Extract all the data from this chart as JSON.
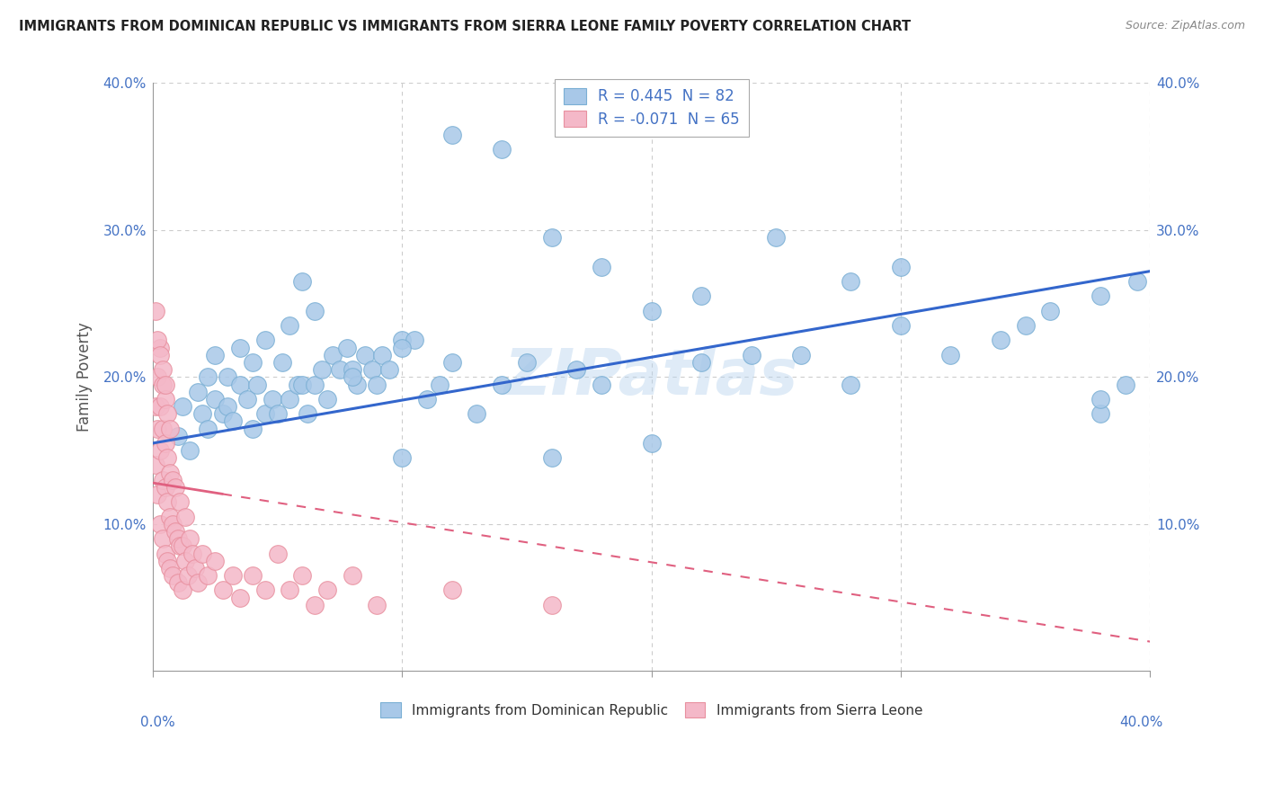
{
  "title": "IMMIGRANTS FROM DOMINICAN REPUBLIC VS IMMIGRANTS FROM SIERRA LEONE FAMILY POVERTY CORRELATION CHART",
  "source_text": "Source: ZipAtlas.com",
  "ylabel": "Family Poverty",
  "legend_entry1": "R = 0.445  N = 82",
  "legend_entry2": "R = -0.071  N = 65",
  "legend_label1": "Immigrants from Dominican Republic",
  "legend_label2": "Immigrants from Sierra Leone",
  "watermark": "ZIPatlas",
  "xlim": [
    0,
    0.4
  ],
  "ylim": [
    0,
    0.4
  ],
  "blue_color": "#a8c8e8",
  "blue_edge_color": "#7aafd4",
  "pink_color": "#f4b8c8",
  "pink_edge_color": "#e8909f",
  "blue_line_color": "#3366cc",
  "pink_line_color": "#e06080",
  "background_color": "#ffffff",
  "grid_color": "#cccccc",
  "blue_scatter_x": [
    0.01,
    0.012,
    0.015,
    0.018,
    0.02,
    0.022,
    0.022,
    0.025,
    0.025,
    0.028,
    0.03,
    0.03,
    0.032,
    0.035,
    0.035,
    0.038,
    0.04,
    0.04,
    0.042,
    0.045,
    0.045,
    0.048,
    0.05,
    0.052,
    0.055,
    0.055,
    0.058,
    0.06,
    0.062,
    0.065,
    0.065,
    0.068,
    0.07,
    0.072,
    0.075,
    0.078,
    0.08,
    0.082,
    0.085,
    0.088,
    0.09,
    0.092,
    0.095,
    0.1,
    0.1,
    0.105,
    0.11,
    0.115,
    0.12,
    0.13,
    0.14,
    0.15,
    0.16,
    0.17,
    0.18,
    0.2,
    0.22,
    0.24,
    0.26,
    0.28,
    0.3,
    0.32,
    0.34,
    0.36,
    0.38,
    0.395,
    0.06,
    0.08,
    0.1,
    0.12,
    0.14,
    0.16,
    0.18,
    0.2,
    0.22,
    0.25,
    0.28,
    0.3,
    0.35,
    0.38,
    0.38,
    0.39
  ],
  "blue_scatter_y": [
    0.16,
    0.18,
    0.15,
    0.19,
    0.175,
    0.2,
    0.165,
    0.185,
    0.215,
    0.175,
    0.18,
    0.2,
    0.17,
    0.195,
    0.22,
    0.185,
    0.165,
    0.21,
    0.195,
    0.175,
    0.225,
    0.185,
    0.175,
    0.21,
    0.185,
    0.235,
    0.195,
    0.195,
    0.175,
    0.195,
    0.245,
    0.205,
    0.185,
    0.215,
    0.205,
    0.22,
    0.205,
    0.195,
    0.215,
    0.205,
    0.195,
    0.215,
    0.205,
    0.145,
    0.225,
    0.225,
    0.185,
    0.195,
    0.21,
    0.175,
    0.195,
    0.21,
    0.145,
    0.205,
    0.195,
    0.155,
    0.21,
    0.215,
    0.215,
    0.195,
    0.235,
    0.215,
    0.225,
    0.245,
    0.175,
    0.265,
    0.265,
    0.2,
    0.22,
    0.365,
    0.355,
    0.295,
    0.275,
    0.245,
    0.255,
    0.295,
    0.265,
    0.275,
    0.235,
    0.255,
    0.185,
    0.195
  ],
  "pink_scatter_x": [
    0.001,
    0.001,
    0.002,
    0.002,
    0.002,
    0.003,
    0.003,
    0.003,
    0.003,
    0.004,
    0.004,
    0.004,
    0.004,
    0.005,
    0.005,
    0.005,
    0.005,
    0.006,
    0.006,
    0.006,
    0.006,
    0.007,
    0.007,
    0.007,
    0.007,
    0.008,
    0.008,
    0.008,
    0.009,
    0.009,
    0.01,
    0.01,
    0.011,
    0.011,
    0.012,
    0.012,
    0.013,
    0.013,
    0.014,
    0.015,
    0.016,
    0.017,
    0.018,
    0.02,
    0.022,
    0.025,
    0.028,
    0.032,
    0.035,
    0.04,
    0.045,
    0.05,
    0.055,
    0.06,
    0.065,
    0.07,
    0.08,
    0.09,
    0.12,
    0.16,
    0.001,
    0.002,
    0.003,
    0.004,
    0.005
  ],
  "pink_scatter_y": [
    0.14,
    0.18,
    0.12,
    0.165,
    0.2,
    0.1,
    0.15,
    0.18,
    0.22,
    0.09,
    0.13,
    0.165,
    0.195,
    0.08,
    0.125,
    0.155,
    0.185,
    0.075,
    0.115,
    0.145,
    0.175,
    0.07,
    0.105,
    0.135,
    0.165,
    0.065,
    0.1,
    0.13,
    0.095,
    0.125,
    0.06,
    0.09,
    0.085,
    0.115,
    0.055,
    0.085,
    0.075,
    0.105,
    0.065,
    0.09,
    0.08,
    0.07,
    0.06,
    0.08,
    0.065,
    0.075,
    0.055,
    0.065,
    0.05,
    0.065,
    0.055,
    0.08,
    0.055,
    0.065,
    0.045,
    0.055,
    0.065,
    0.045,
    0.055,
    0.045,
    0.245,
    0.225,
    0.215,
    0.205,
    0.195
  ],
  "blue_line_x0": 0.0,
  "blue_line_y0": 0.155,
  "blue_line_x1": 0.4,
  "blue_line_y1": 0.272,
  "pink_line_x0": 0.0,
  "pink_line_y0": 0.128,
  "pink_line_x1": 0.4,
  "pink_line_y1": 0.02
}
